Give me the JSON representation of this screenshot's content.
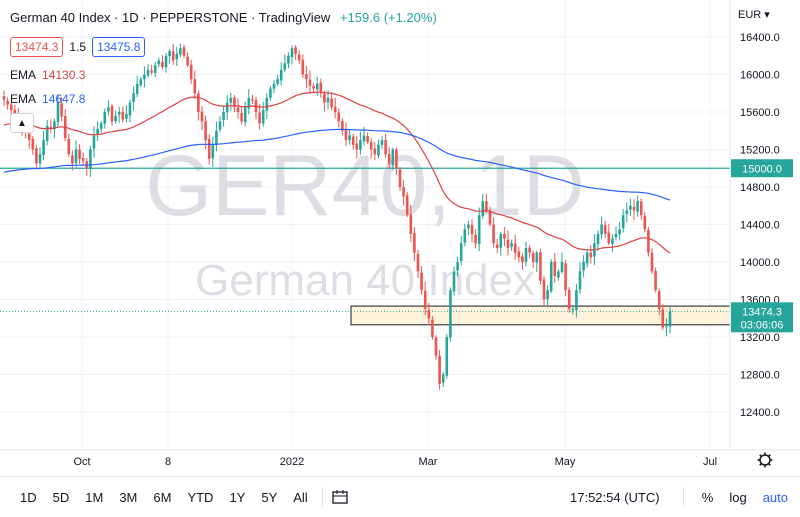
{
  "chart_data": {
    "type": "candlestick",
    "title": "German 40 Index · 1D · PEPPERSTONE · TradingView",
    "watermark": {
      "big": "GER40, 1D",
      "small": "German 40 Index"
    },
    "change": "+159.6 (+1.20%)",
    "bid": "13474.3",
    "spread": "1.5",
    "ask": "13475.8",
    "currency": "EUR",
    "ema": [
      {
        "label": "EMA",
        "value": "14130.3",
        "color": "#e04040"
      },
      {
        "label": "EMA",
        "value": "14647.8",
        "color": "#2962ff"
      }
    ],
    "yaxis": {
      "min": 12000,
      "max": 16600,
      "ticks": [
        "16400.0",
        "16000.0",
        "15600.0",
        "15200.0",
        "14800.0",
        "14400.0",
        "14000.0",
        "13600.0",
        "13200.0",
        "12800.0",
        "12400.0"
      ]
    },
    "xaxis": {
      "ticks": [
        "Oct",
        "8",
        "2022",
        "Mar",
        "May",
        "Jul"
      ]
    },
    "hline": {
      "value": 15000,
      "label": "15000.0",
      "color": "#26a69a"
    },
    "zone": {
      "low": 13330,
      "high": 13530,
      "color": "#fff3dc"
    },
    "price_label": {
      "value": "13474.3",
      "timer": "03:06:06"
    },
    "closes": [
      15730,
      15680,
      15620,
      15560,
      15480,
      15420,
      15380,
      15300,
      15200,
      15050,
      15150,
      15300,
      15450,
      15420,
      15500,
      15700,
      15550,
      15320,
      15150,
      15050,
      15200,
      15100,
      15080,
      15000,
      15200,
      15350,
      15420,
      15480,
      15600,
      15650,
      15500,
      15560,
      15600,
      15520,
      15580,
      15700,
      15800,
      15900,
      15950,
      16000,
      16050,
      16020,
      16100,
      16150,
      16080,
      16200,
      16250,
      16150,
      16220,
      16280,
      16200,
      16100,
      15950,
      15800,
      15600,
      15500,
      15300,
      15100,
      15250,
      15400,
      15500,
      15600,
      15700,
      15750,
      15650,
      15600,
      15500,
      15650,
      15750,
      15720,
      15600,
      15480,
      15620,
      15750,
      15850,
      15900,
      15950,
      16050,
      16120,
      16200,
      16280,
      16220,
      16150,
      16000,
      15950,
      15880,
      15850,
      15900,
      15800,
      15700,
      15750,
      15650,
      15600,
      15500,
      15400,
      15300,
      15350,
      15250,
      15200,
      15300,
      15350,
      15280,
      15200,
      15150,
      15250,
      15300,
      15150,
      15050,
      15200,
      15000,
      14800,
      14700,
      14500,
      14300,
      14100,
      13900,
      13700,
      13500,
      13400,
      13200,
      13000,
      12700,
      12800,
      13200,
      13700,
      13900,
      14000,
      14200,
      14350,
      14400,
      14300,
      14200,
      14500,
      14650,
      14550,
      14400,
      14200,
      14150,
      14300,
      14250,
      14150,
      14200,
      14100,
      14050,
      14000,
      14150,
      14100,
      14000,
      14100,
      13800,
      13600,
      13700,
      14000,
      13850,
      13900,
      14000,
      13700,
      13500,
      13500,
      13700,
      13900,
      14000,
      14100,
      14050,
      14200,
      14300,
      14400,
      14300,
      14200,
      14250,
      14300,
      14350,
      14500,
      14550,
      14600,
      14550,
      14650,
      14500,
      14350,
      14100,
      13900,
      13700,
      13500,
      13300,
      13314,
      13474
    ]
  },
  "toolbar": {
    "intervals": [
      "1D",
      "5D",
      "1M",
      "3M",
      "6M",
      "YTD",
      "1Y",
      "5Y",
      "All"
    ],
    "clock": "17:52:54 (UTC)",
    "percent": "%",
    "log": "log",
    "auto": "auto"
  }
}
